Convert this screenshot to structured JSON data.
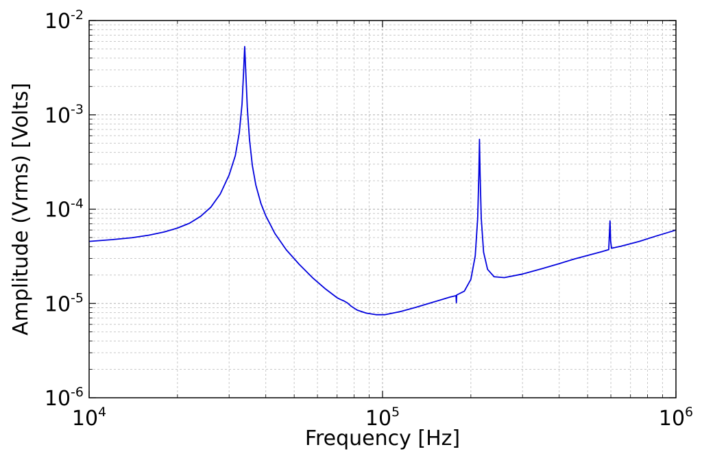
{
  "chart_data": {
    "type": "line",
    "title": "",
    "xlabel": "Frequency [Hz]",
    "ylabel": "Amplitude (Vrms) [Volts]",
    "xscale": "log",
    "yscale": "log",
    "xlim": [
      10000,
      1000000
    ],
    "ylim": [
      1e-06,
      0.01
    ],
    "grid": true,
    "legend": "none",
    "x_ticks": [
      {
        "value": 10000,
        "base": "10",
        "exp": "4"
      },
      {
        "value": 100000,
        "base": "10",
        "exp": "5"
      },
      {
        "value": 1000000,
        "base": "10",
        "exp": "6"
      }
    ],
    "y_ticks": [
      {
        "value": 1e-06,
        "base": "10",
        "exp": "-6"
      },
      {
        "value": 1e-05,
        "base": "10",
        "exp": "-5"
      },
      {
        "value": 0.0001,
        "base": "10",
        "exp": "-4"
      },
      {
        "value": 0.001,
        "base": "10",
        "exp": "-3"
      },
      {
        "value": 0.01,
        "base": "10",
        "exp": "-2"
      }
    ],
    "series": [
      {
        "color": "#0000dd",
        "points": [
          [
            10000,
            4.55e-05
          ],
          [
            12000,
            4.75e-05
          ],
          [
            14000,
            4.98e-05
          ],
          [
            16000,
            5.3e-05
          ],
          [
            18000,
            5.72e-05
          ],
          [
            20000,
            6.3e-05
          ],
          [
            22000,
            7.1e-05
          ],
          [
            24000,
            8.4e-05
          ],
          [
            26000,
            0.000105
          ],
          [
            28000,
            0.000145
          ],
          [
            30000,
            0.00023
          ],
          [
            31500,
            0.00037
          ],
          [
            32500,
            0.00065
          ],
          [
            33200,
            0.0013
          ],
          [
            33600,
            0.0028
          ],
          [
            33900,
            0.0053
          ],
          [
            34200,
            0.0028
          ],
          [
            34600,
            0.0012
          ],
          [
            35200,
            0.00055
          ],
          [
            36000,
            0.00029
          ],
          [
            37000,
            0.00018
          ],
          [
            38500,
            0.000115
          ],
          [
            40000,
            8.5e-05
          ],
          [
            43000,
            5.5e-05
          ],
          [
            47000,
            3.7e-05
          ],
          [
            52000,
            2.6e-05
          ],
          [
            58000,
            1.85e-05
          ],
          [
            64000,
            1.42e-05
          ],
          [
            70000,
            1.15e-05
          ],
          [
            72000,
            1.1e-05
          ],
          [
            74000,
            1.06e-05
          ],
          [
            76000,
            1.01e-05
          ],
          [
            78000,
            9.4e-06
          ],
          [
            82000,
            8.5e-06
          ],
          [
            88000,
            7.9e-06
          ],
          [
            95000,
            7.6e-06
          ],
          [
            102000,
            7.6e-06
          ],
          [
            115000,
            8.2e-06
          ],
          [
            130000,
            9.1e-06
          ],
          [
            150000,
            1.04e-05
          ],
          [
            170000,
            1.17e-05
          ],
          [
            178000,
            1.21e-05
          ],
          [
            178500,
            1.02e-05
          ],
          [
            179000,
            1.23e-05
          ],
          [
            190000,
            1.35e-05
          ],
          [
            200000,
            1.8e-05
          ],
          [
            207000,
            3.2e-05
          ],
          [
            211000,
            8e-05
          ],
          [
            213000,
            0.00024
          ],
          [
            214000,
            0.00055
          ],
          [
            215000,
            0.00024
          ],
          [
            217000,
            8e-05
          ],
          [
            221000,
            3.5e-05
          ],
          [
            228000,
            2.3e-05
          ],
          [
            240000,
            1.92e-05
          ],
          [
            260000,
            1.88e-05
          ],
          [
            300000,
            2.05e-05
          ],
          [
            350000,
            2.34e-05
          ],
          [
            400000,
            2.64e-05
          ],
          [
            450000,
            2.96e-05
          ],
          [
            500000,
            3.23e-05
          ],
          [
            560000,
            3.55e-05
          ],
          [
            590000,
            3.72e-05
          ],
          [
            596000,
            7.5e-05
          ],
          [
            599000,
            4.6e-05
          ],
          [
            603000,
            3.85e-05
          ],
          [
            650000,
            4.05e-05
          ],
          [
            750000,
            4.55e-05
          ],
          [
            850000,
            5.15e-05
          ],
          [
            1000000,
            6e-05
          ]
        ]
      }
    ]
  }
}
